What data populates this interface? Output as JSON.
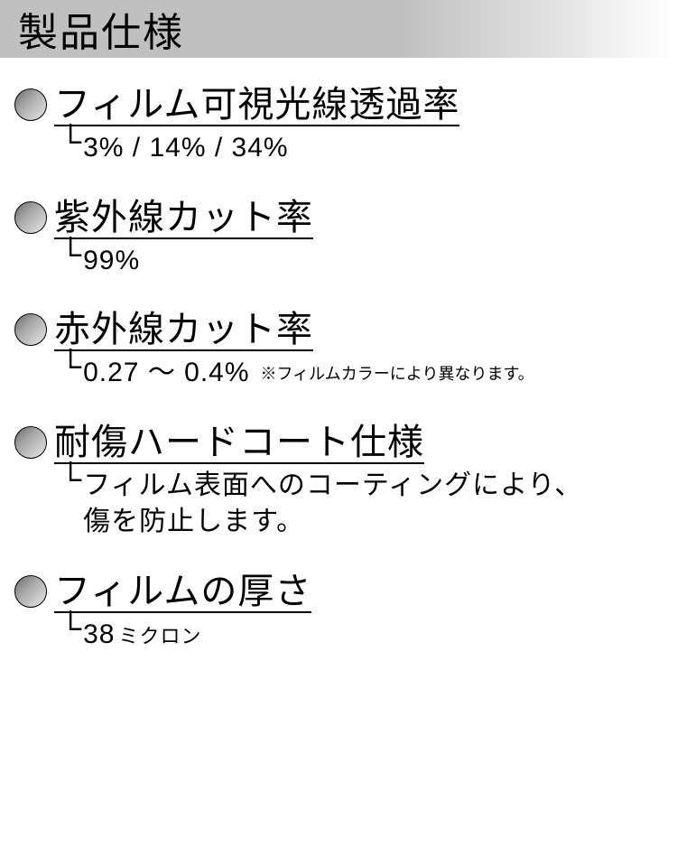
{
  "header": {
    "title": "製品仕様"
  },
  "specs": [
    {
      "title": "フィルム可視光線透過率",
      "value": "3% / 14% / 34%",
      "note": ""
    },
    {
      "title": "紫外線カット率",
      "value": "99%",
      "note": ""
    },
    {
      "title": "赤外線カット率",
      "value": "0.27 ～ 0.4%",
      "note": "※フィルムカラーにより異なります。"
    },
    {
      "title": "耐傷ハードコート仕様",
      "value": "フィルム表面へのコーティングにより、\n傷を防止します。",
      "note": ""
    },
    {
      "title": "フィルムの厚さ",
      "value": "38",
      "unit": "ミクロン",
      "note": ""
    }
  ],
  "style": {
    "header_gradient_from": "#c0c0c0",
    "header_gradient_to": "#ffffff",
    "bullet_border": "#000000",
    "bullet_grad_dark": "#6b6b6b",
    "bullet_grad_light": "#e8e8e8",
    "title_fontsize": 44,
    "spec_title_fontsize": 40,
    "spec_value_fontsize": 30,
    "note_fontsize": 18
  }
}
